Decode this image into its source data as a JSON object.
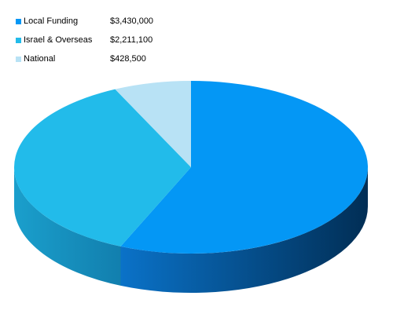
{
  "chart_data": {
    "type": "pie",
    "style": "3d",
    "title": "",
    "legend_position": "top-left",
    "slices": [
      {
        "name": "Local Funding",
        "display_value": "$3,430,000",
        "value": 3430000,
        "color": "#0497f5"
      },
      {
        "name": "Israel & Overseas",
        "display_value": "$2,211,100",
        "value": 2211100,
        "color": "#22bbea"
      },
      {
        "name": "National",
        "display_value": "$428,500",
        "value": 428500,
        "color": "#b8e2f5"
      }
    ]
  }
}
